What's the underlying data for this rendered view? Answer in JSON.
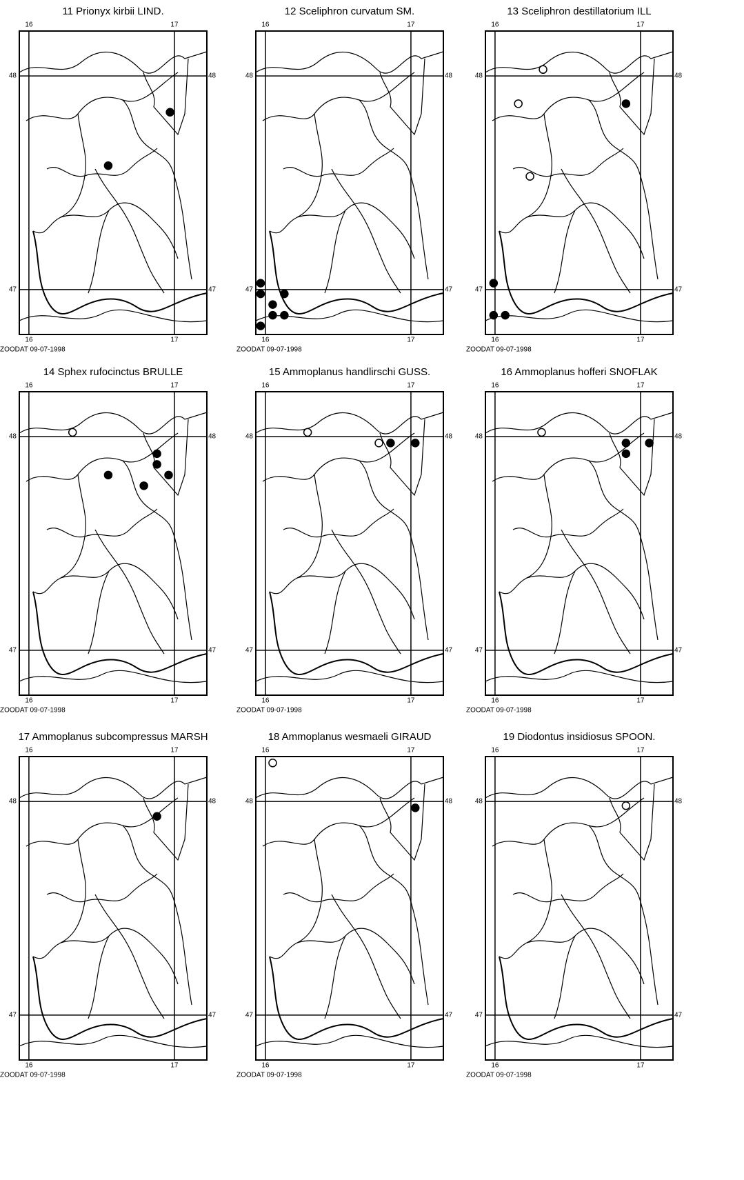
{
  "xlim": [
    15.934,
    17.223
  ],
  "ylim": [
    46.79,
    48.21
  ],
  "xticks": [
    16,
    17
  ],
  "yticks": [
    48,
    47
  ],
  "footer": "ZOODAT 09-07-1998",
  "maps": [
    {
      "title": "11 Prionyx kirbii LIND.",
      "points": [
        {
          "lon": 16.97,
          "lat": 47.83,
          "filled": true
        },
        {
          "lon": 16.545,
          "lat": 47.58,
          "filled": true
        }
      ]
    },
    {
      "title": "12 Sceliphron curvatum SM.",
      "points": [
        {
          "lon": 15.967,
          "lat": 47.03,
          "filled": true
        },
        {
          "lon": 15.967,
          "lat": 46.98,
          "filled": true
        },
        {
          "lon": 16.05,
          "lat": 46.93,
          "filled": true
        },
        {
          "lon": 16.13,
          "lat": 46.98,
          "filled": true
        },
        {
          "lon": 16.05,
          "lat": 46.88,
          "filled": true
        },
        {
          "lon": 16.13,
          "lat": 46.88,
          "filled": true
        },
        {
          "lon": 15.967,
          "lat": 46.83,
          "filled": true
        }
      ]
    },
    {
      "title": "13 Sceliphron destillatorium ILL",
      "points": [
        {
          "lon": 16.33,
          "lat": 48.03,
          "filled": false
        },
        {
          "lon": 16.16,
          "lat": 47.87,
          "filled": false
        },
        {
          "lon": 16.9,
          "lat": 47.87,
          "filled": true
        },
        {
          "lon": 16.24,
          "lat": 47.53,
          "filled": false
        },
        {
          "lon": 15.99,
          "lat": 47.03,
          "filled": true
        },
        {
          "lon": 15.99,
          "lat": 46.88,
          "filled": true
        },
        {
          "lon": 16.07,
          "lat": 46.88,
          "filled": true
        }
      ]
    },
    {
      "title": "14 Sphex rufocinctus BRULLE",
      "points": [
        {
          "lon": 16.3,
          "lat": 48.02,
          "filled": false
        },
        {
          "lon": 16.88,
          "lat": 47.92,
          "filled": true
        },
        {
          "lon": 16.88,
          "lat": 47.87,
          "filled": true
        },
        {
          "lon": 16.545,
          "lat": 47.82,
          "filled": true
        },
        {
          "lon": 16.96,
          "lat": 47.82,
          "filled": true
        },
        {
          "lon": 16.79,
          "lat": 47.77,
          "filled": true
        }
      ]
    },
    {
      "title": "15 Ammoplanus handlirschi GUSS.",
      "points": [
        {
          "lon": 16.29,
          "lat": 48.02,
          "filled": false
        },
        {
          "lon": 16.78,
          "lat": 47.97,
          "filled": false
        },
        {
          "lon": 16.86,
          "lat": 47.97,
          "filled": true
        },
        {
          "lon": 17.03,
          "lat": 47.97,
          "filled": true
        }
      ]
    },
    {
      "title": "16 Ammoplanus hofferi SNOFLAK",
      "points": [
        {
          "lon": 16.32,
          "lat": 48.02,
          "filled": false
        },
        {
          "lon": 16.9,
          "lat": 47.97,
          "filled": true
        },
        {
          "lon": 16.9,
          "lat": 47.92,
          "filled": true
        },
        {
          "lon": 17.06,
          "lat": 47.97,
          "filled": true
        }
      ]
    },
    {
      "title": "17 Ammoplanus subcompressus MARSH",
      "points": [
        {
          "lon": 16.88,
          "lat": 47.93,
          "filled": true
        }
      ]
    },
    {
      "title": "18 Ammoplanus wesmaeli GIRAUD",
      "points": [
        {
          "lon": 16.05,
          "lat": 48.18,
          "filled": false
        },
        {
          "lon": 17.03,
          "lat": 47.97,
          "filled": true
        }
      ]
    },
    {
      "title": "19 Diodontus insidiosus SPOON.",
      "points": [
        {
          "lon": 16.9,
          "lat": 47.98,
          "filled": false
        }
      ]
    }
  ]
}
